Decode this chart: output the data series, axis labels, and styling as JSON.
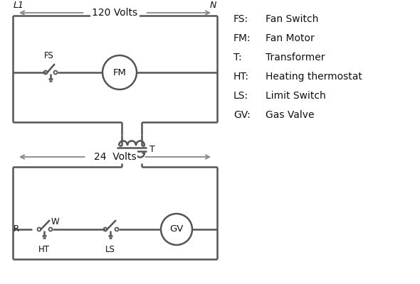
{
  "background_color": "#ffffff",
  "line_color": "#555555",
  "arrow_color": "#888888",
  "text_color": "#111111",
  "legend": [
    [
      "FS:",
      "Fan Switch"
    ],
    [
      "FM:",
      "Fan Motor"
    ],
    [
      "T:",
      "Transformer"
    ],
    [
      "HT:",
      "Heating thermostat"
    ],
    [
      "LS:",
      "Limit Switch"
    ],
    [
      "GV:",
      "Gas Valve"
    ]
  ],
  "volts_120": "120 Volts",
  "volts_24": "24  Volts",
  "L1_label": "L1",
  "N_label": "N",
  "T_label": "T",
  "HT_label": "HT",
  "LS_label": "LS",
  "R_label": "R",
  "W_label": "W",
  "FS_label": "FS",
  "FM_label": "FM",
  "GV_label": "GV"
}
